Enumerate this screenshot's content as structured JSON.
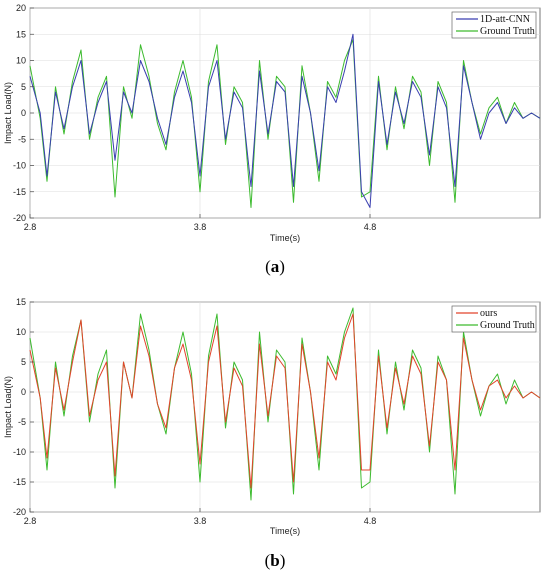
{
  "chart_data": [
    {
      "type": "line",
      "caption": "(a)",
      "caption_letter": "a",
      "xlabel": "Time(s)",
      "ylabel": "Impact Load(N)",
      "xlim": [
        2.8,
        5.8
      ],
      "ylim": [
        -20,
        20
      ],
      "xticks": [
        2.8,
        3.8,
        4.8
      ],
      "yticks": [
        -20,
        -15,
        -10,
        -5,
        0,
        5,
        10,
        15,
        20
      ],
      "grid": true,
      "legend_position": "top-right",
      "series": [
        {
          "name": "1D-att-CNN",
          "color": "#3a3fb0",
          "x": [
            2.8,
            2.86,
            2.9,
            2.95,
            3.0,
            3.05,
            3.1,
            3.15,
            3.2,
            3.25,
            3.3,
            3.35,
            3.4,
            3.45,
            3.5,
            3.55,
            3.6,
            3.65,
            3.7,
            3.75,
            3.8,
            3.85,
            3.9,
            3.95,
            4.0,
            4.05,
            4.1,
            4.15,
            4.2,
            4.25,
            4.3,
            4.35,
            4.4,
            4.45,
            4.5,
            4.55,
            4.6,
            4.65,
            4.7,
            4.75,
            4.8,
            4.85,
            4.9,
            4.95,
            5.0,
            5.05,
            5.1,
            5.15,
            5.2,
            5.25,
            5.3,
            5.35,
            5.4,
            5.45,
            5.5,
            5.55,
            5.6,
            5.65,
            5.7,
            5.75,
            5.8
          ],
          "y": [
            7,
            0,
            -12,
            4,
            -3,
            5,
            10,
            -4,
            2,
            6,
            -9,
            4,
            0,
            10,
            6,
            -1,
            -6,
            3,
            8,
            2,
            -12,
            5,
            10,
            -5,
            4,
            1,
            -14,
            8,
            -4,
            6,
            4,
            -14,
            7,
            0,
            -11,
            5,
            2,
            8,
            15,
            -15,
            -18,
            6,
            -6,
            4,
            -2,
            6,
            3,
            -8,
            5,
            1,
            -14,
            9,
            2,
            -5,
            0,
            2,
            -2,
            1,
            -1,
            0,
            -1
          ]
        },
        {
          "name": "Ground Truth",
          "color": "#3dbb2f",
          "x": [
            2.8,
            2.86,
            2.9,
            2.95,
            3.0,
            3.05,
            3.1,
            3.15,
            3.2,
            3.25,
            3.3,
            3.35,
            3.4,
            3.45,
            3.5,
            3.55,
            3.6,
            3.65,
            3.7,
            3.75,
            3.8,
            3.85,
            3.9,
            3.95,
            4.0,
            4.05,
            4.1,
            4.15,
            4.2,
            4.25,
            4.3,
            4.35,
            4.4,
            4.45,
            4.5,
            4.55,
            4.6,
            4.65,
            4.7,
            4.75,
            4.8,
            4.85,
            4.9,
            4.95,
            5.0,
            5.05,
            5.1,
            5.15,
            5.2,
            5.25,
            5.3,
            5.35,
            5.4,
            5.45,
            5.5,
            5.55,
            5.6,
            5.65,
            5.7,
            5.75,
            5.8
          ],
          "y": [
            9,
            -1,
            -13,
            5,
            -4,
            6,
            12,
            -5,
            3,
            7,
            -16,
            5,
            -1,
            13,
            7,
            -2,
            -7,
            4,
            10,
            3,
            -15,
            6,
            13,
            -6,
            5,
            2,
            -18,
            10,
            -5,
            7,
            5,
            -17,
            9,
            0,
            -13,
            6,
            3,
            10,
            14,
            -16,
            -15,
            7,
            -7,
            5,
            -3,
            7,
            4,
            -10,
            6,
            2,
            -17,
            10,
            2,
            -4,
            1,
            3,
            -2,
            2,
            -1,
            0,
            -1
          ]
        }
      ]
    },
    {
      "type": "line",
      "caption": "(b)",
      "caption_letter": "b",
      "xlabel": "Time(s)",
      "ylabel": "Impact Load(N)",
      "xlim": [
        2.8,
        5.8
      ],
      "ylim": [
        -20,
        15
      ],
      "xticks": [
        2.8,
        3.8,
        4.8
      ],
      "yticks": [
        -20,
        -15,
        -10,
        -5,
        0,
        5,
        10,
        15
      ],
      "grid": true,
      "legend_position": "top-right",
      "series": [
        {
          "name": "ours",
          "color": "#e2442c",
          "x": [
            2.8,
            2.86,
            2.9,
            2.95,
            3.0,
            3.05,
            3.1,
            3.15,
            3.2,
            3.25,
            3.3,
            3.35,
            3.4,
            3.45,
            3.5,
            3.55,
            3.6,
            3.65,
            3.7,
            3.75,
            3.8,
            3.85,
            3.9,
            3.95,
            4.0,
            4.05,
            4.1,
            4.15,
            4.2,
            4.25,
            4.3,
            4.35,
            4.4,
            4.45,
            4.5,
            4.55,
            4.6,
            4.65,
            4.7,
            4.75,
            4.8,
            4.85,
            4.9,
            4.95,
            5.0,
            5.05,
            5.1,
            5.15,
            5.2,
            5.25,
            5.3,
            5.35,
            5.4,
            5.45,
            5.5,
            5.55,
            5.6,
            5.65,
            5.7,
            5.75,
            5.8
          ],
          "y": [
            7,
            -1,
            -11,
            4,
            -3,
            5,
            12,
            -4,
            2,
            5,
            -14,
            5,
            -1,
            11,
            6,
            -2,
            -6,
            4,
            8,
            2,
            -12,
            5,
            11,
            -5,
            4,
            1,
            -16,
            8,
            -4,
            6,
            4,
            -15,
            8,
            0,
            -11,
            5,
            2,
            9,
            13,
            -13,
            -13,
            6,
            -6,
            4,
            -2,
            6,
            3,
            -9,
            5,
            2,
            -13,
            9,
            2,
            -3,
            1,
            2,
            -1,
            1,
            -1,
            0,
            -1
          ]
        },
        {
          "name": "Ground Truth",
          "color": "#3dbb2f",
          "x": [
            2.8,
            2.86,
            2.9,
            2.95,
            3.0,
            3.05,
            3.1,
            3.15,
            3.2,
            3.25,
            3.3,
            3.35,
            3.4,
            3.45,
            3.5,
            3.55,
            3.6,
            3.65,
            3.7,
            3.75,
            3.8,
            3.85,
            3.9,
            3.95,
            4.0,
            4.05,
            4.1,
            4.15,
            4.2,
            4.25,
            4.3,
            4.35,
            4.4,
            4.45,
            4.5,
            4.55,
            4.6,
            4.65,
            4.7,
            4.75,
            4.8,
            4.85,
            4.9,
            4.95,
            5.0,
            5.05,
            5.1,
            5.15,
            5.2,
            5.25,
            5.3,
            5.35,
            5.4,
            5.45,
            5.5,
            5.55,
            5.6,
            5.65,
            5.7,
            5.75,
            5.8
          ],
          "y": [
            9,
            -1,
            -13,
            5,
            -4,
            6,
            12,
            -5,
            3,
            7,
            -16,
            5,
            -1,
            13,
            7,
            -2,
            -7,
            4,
            10,
            3,
            -15,
            6,
            13,
            -6,
            5,
            2,
            -18,
            10,
            -5,
            7,
            5,
            -17,
            9,
            0,
            -13,
            6,
            3,
            10,
            14,
            -16,
            -15,
            7,
            -7,
            5,
            -3,
            7,
            4,
            -10,
            6,
            2,
            -17,
            10,
            2,
            -4,
            1,
            3,
            -2,
            2,
            -1,
            0,
            -1
          ]
        }
      ]
    }
  ]
}
